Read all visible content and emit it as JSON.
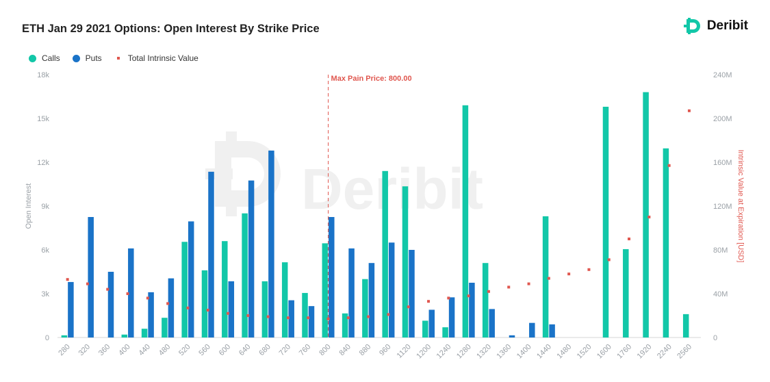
{
  "header": {
    "title": "ETH Jan 29 2021 Options: Open Interest By Strike Price",
    "brand": "Deribit"
  },
  "legend": {
    "calls": "Calls",
    "puts": "Puts",
    "intrinsic": "Total Intrinsic Value"
  },
  "colors": {
    "calls": "#12c7a8",
    "puts": "#1a73c8",
    "intrinsic": "#e0574f",
    "watermark": "#f0f0f0"
  },
  "watermark": "Deribit",
  "chart_data": {
    "type": "bar",
    "title": "ETH Jan 29 2021 Options: Open Interest By Strike Price",
    "categories": [
      "280",
      "320",
      "360",
      "400",
      "440",
      "480",
      "520",
      "560",
      "600",
      "640",
      "680",
      "720",
      "760",
      "800",
      "840",
      "880",
      "960",
      "1120",
      "1200",
      "1240",
      "1280",
      "1320",
      "1360",
      "1400",
      "1440",
      "1480",
      "1520",
      "1600",
      "1760",
      "1920",
      "2240",
      "2560"
    ],
    "series": [
      {
        "name": "Calls",
        "values": [
          150,
          0,
          0,
          200,
          600,
          1350,
          6550,
          4600,
          6600,
          8500,
          3850,
          5150,
          3050,
          6450,
          1650,
          4000,
          11400,
          10350,
          1150,
          700,
          15900,
          5100,
          0,
          0,
          8300,
          0,
          0,
          15800,
          6050,
          16800,
          12950,
          1600
        ]
      },
      {
        "name": "Puts",
        "values": [
          3800,
          8250,
          4500,
          6100,
          3100,
          4050,
          7950,
          11350,
          3850,
          10750,
          12800,
          2550,
          2150,
          8250,
          6100,
          5100,
          6500,
          6000,
          1900,
          2750,
          3750,
          1950,
          150,
          1000,
          900,
          0,
          0,
          0,
          0,
          0,
          0,
          0
        ]
      },
      {
        "name": "Total Intrinsic Value",
        "axis": "right",
        "values": [
          53,
          49,
          44,
          40,
          36,
          31,
          27,
          25,
          22,
          20,
          19,
          18,
          18,
          17,
          18,
          19,
          21,
          28,
          33,
          36,
          38,
          42,
          46,
          49,
          54,
          58,
          62,
          71,
          90,
          110,
          157,
          207
        ]
      }
    ],
    "y_left": {
      "label": "Open Interest",
      "ylim": [
        0,
        18000
      ],
      "ticks": [
        0,
        3000,
        6000,
        9000,
        12000,
        15000,
        18000
      ],
      "tick_labels": [
        "0",
        "3k",
        "6k",
        "9k",
        "12k",
        "15k",
        "18k"
      ]
    },
    "y_right": {
      "label": "Intrinsic Value at Expiration [USD]",
      "ylim": [
        0,
        240
      ],
      "ticks": [
        0,
        40,
        80,
        120,
        160,
        200,
        240
      ],
      "tick_labels": [
        "0",
        "40M",
        "80M",
        "120M",
        "160M",
        "200M",
        "240M"
      ]
    },
    "annotation": {
      "label": "Max Pain Price: 800.00",
      "category": "800"
    },
    "legend_position": "top-left",
    "grid": false
  }
}
